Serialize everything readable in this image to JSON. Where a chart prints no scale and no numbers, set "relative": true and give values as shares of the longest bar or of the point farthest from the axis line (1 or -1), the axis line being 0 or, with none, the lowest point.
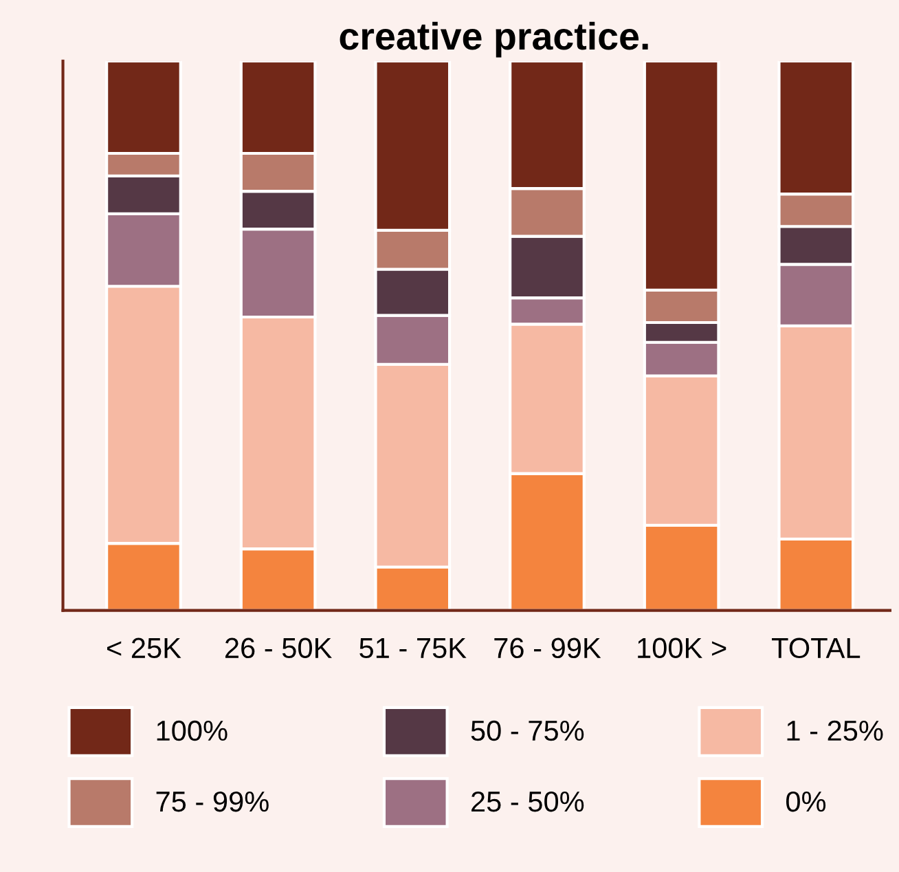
{
  "chart_data": {
    "type": "bar",
    "title": "creative practice.",
    "stacked": true,
    "relative": true,
    "legend": "bottom",
    "grid": false,
    "categories": [
      "< 25K",
      "26 - 50K",
      "51 - 75K",
      "76 - 99K",
      "100K >",
      "TOTAL"
    ],
    "series": [
      {
        "name": "0%",
        "color": "#f4843e",
        "values": [
          0.122,
          0.112,
          0.079,
          0.249,
          0.155,
          0.13
        ]
      },
      {
        "name": "1 - 25%",
        "color": "#f6b9a3",
        "values": [
          0.468,
          0.422,
          0.369,
          0.272,
          0.272,
          0.388
        ]
      },
      {
        "name": "25 - 50%",
        "color": "#9d7083",
        "values": [
          0.132,
          0.16,
          0.089,
          0.048,
          0.061,
          0.112
        ]
      },
      {
        "name": "50 - 75%",
        "color": "#553845",
        "values": [
          0.069,
          0.069,
          0.084,
          0.112,
          0.036,
          0.069
        ]
      },
      {
        "name": "75 - 99%",
        "color": "#b87a6a",
        "values": [
          0.041,
          0.069,
          0.071,
          0.087,
          0.059,
          0.059
        ]
      },
      {
        "name": "100%",
        "color": "#722818",
        "values": [
          0.168,
          0.168,
          0.308,
          0.232,
          0.417,
          0.242
        ]
      }
    ]
  }
}
